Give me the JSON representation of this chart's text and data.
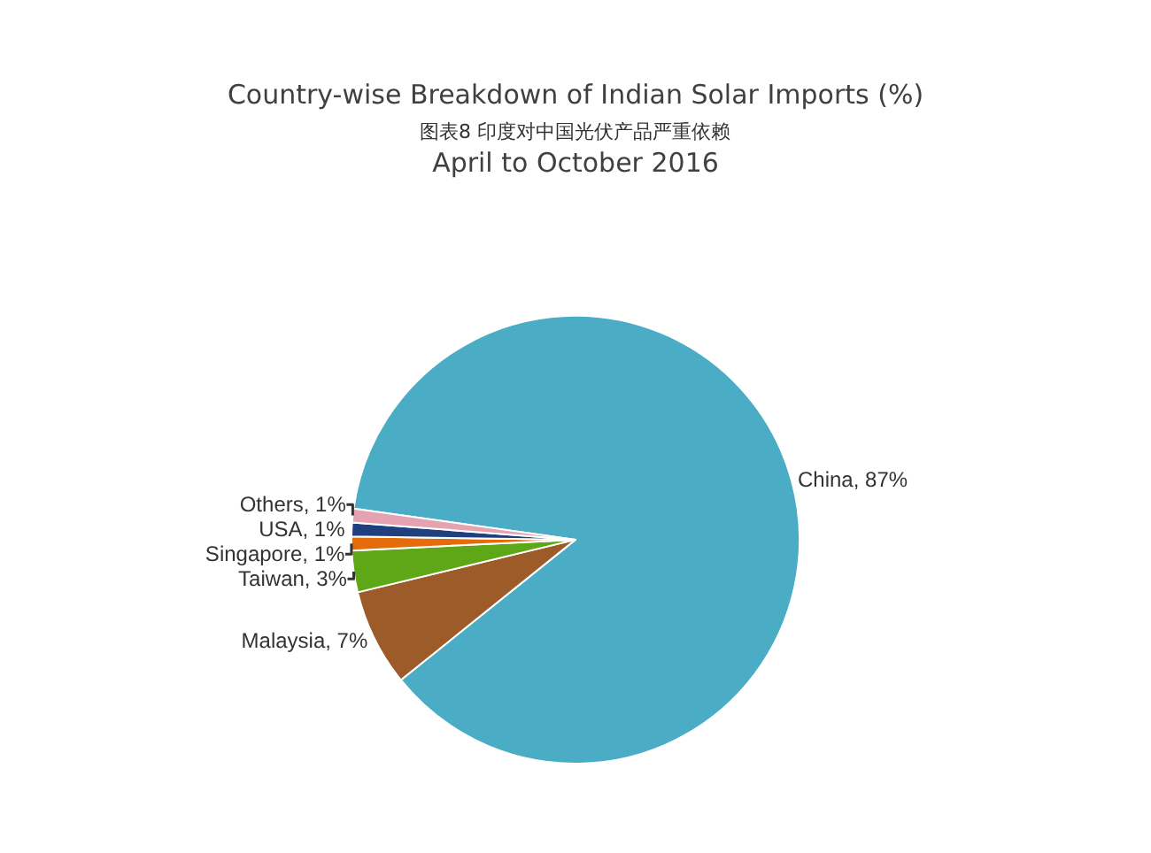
{
  "chart_data": {
    "type": "pie",
    "title": "Country-wise Breakdown of Indian Solar Imports (%)",
    "subtitle": "April to October 2016",
    "annotations": [
      "图表8 印度对中国光伏产品严重依赖"
    ],
    "categories": [
      "China",
      "Malaysia",
      "Taiwan",
      "Singapore",
      "USA",
      "Others"
    ],
    "values": [
      87,
      7,
      3,
      1,
      1,
      1
    ],
    "value_labels": [
      "87%",
      "7%",
      "3%",
      "1%",
      "1%",
      "1%"
    ],
    "colors": [
      "#4bacc6",
      "#9c5b28",
      "#5ea818",
      "#e46c0a",
      "#1f3f7f",
      "#e3a3b3"
    ],
    "legend": false
  }
}
